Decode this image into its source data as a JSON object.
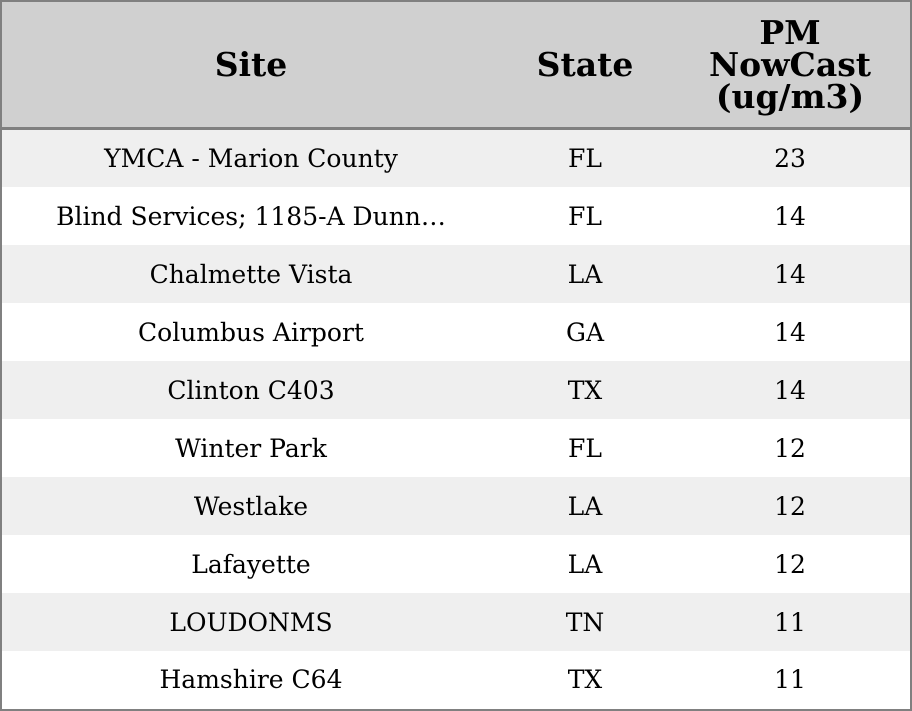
{
  "table": {
    "headers": {
      "site": "Site",
      "state": "State",
      "pm_line1": "PM",
      "pm_line2": "NowCast",
      "pm_line3": "(ug/m3)"
    },
    "rows": [
      {
        "site": "YMCA - Marion County",
        "state": "FL",
        "pm": "23"
      },
      {
        "site": "Blind Services; 1185-A Dunn…",
        "state": "FL",
        "pm": "14"
      },
      {
        "site": "Chalmette Vista",
        "state": "LA",
        "pm": "14"
      },
      {
        "site": "Columbus Airport",
        "state": "GA",
        "pm": "14"
      },
      {
        "site": "Clinton C403",
        "state": "TX",
        "pm": "14"
      },
      {
        "site": "Winter Park",
        "state": "FL",
        "pm": "12"
      },
      {
        "site": "Westlake",
        "state": "LA",
        "pm": "12"
      },
      {
        "site": "Lafayette",
        "state": "LA",
        "pm": "12"
      },
      {
        "site": "LOUDONMS",
        "state": "TN",
        "pm": "11"
      },
      {
        "site": "Hamshire C64",
        "state": "TX",
        "pm": "11"
      }
    ]
  },
  "colors": {
    "header_bg": "#d0d0d0",
    "row_alt_bg": "#efefef",
    "row_bg": "#ffffff",
    "border": "#808080"
  }
}
